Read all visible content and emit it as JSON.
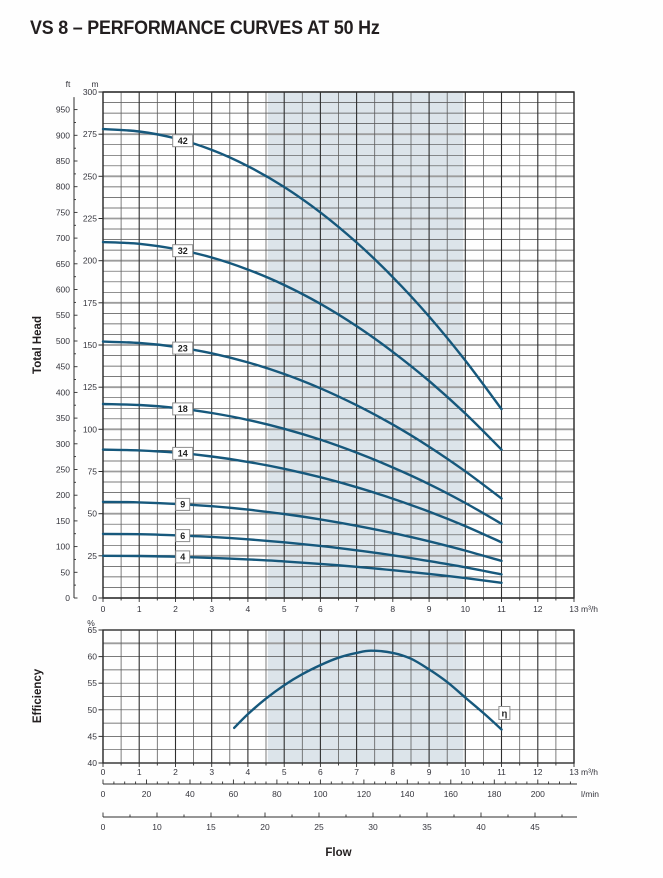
{
  "title": "VS 8 – PERFORMANCE CURVES AT 50 Hz",
  "colors": {
    "curve": "#16587c",
    "band": "#dce4ea",
    "grid_minor_h": "#4f4f4f",
    "grid_major_h": "#9c9c9c",
    "grid_major_v": "#2e2e2e",
    "grid_minor_v": "#5c5c5c",
    "border": "#2e2e2e",
    "axis_text": "#35353d",
    "label_box_border": "#8f8f8f",
    "label_box_fill": "#ffffff",
    "title_text": "#221e1f"
  },
  "chart_data": [
    {
      "type": "line",
      "name": "total-head-curves",
      "ylabel": "Total Head",
      "x_unit": "m³/h",
      "y_unit_left": "ft",
      "y_unit_right": "m",
      "xlim": [
        0,
        13
      ],
      "ylim": [
        0,
        300
      ],
      "x_ticks": [
        0,
        1,
        2,
        3,
        4,
        5,
        6,
        7,
        8,
        9,
        10,
        11,
        12,
        13
      ],
      "y_ticks_m": [
        0,
        25,
        50,
        75,
        100,
        125,
        150,
        175,
        200,
        225,
        250,
        275,
        300
      ],
      "y_ticks_ft": [
        0,
        50,
        100,
        150,
        200,
        250,
        300,
        350,
        400,
        450,
        500,
        550,
        600,
        650,
        700,
        750,
        800,
        850,
        900,
        950
      ],
      "band_x": [
        4.55,
        9.95
      ],
      "grid": {
        "x_minor_step": 0.5,
        "y_minor_step": 6.25,
        "y_major_step": 25
      },
      "legend_position": "on-curve-boxes",
      "series": [
        {
          "name": "42",
          "label_x": 2.2,
          "points": [
            [
              0,
              278
            ],
            [
              1,
              276.6
            ],
            [
              2,
              272.5
            ],
            [
              3,
              265.7
            ],
            [
              4,
              256.0
            ],
            [
              5,
              243.7
            ],
            [
              6,
              228.6
            ],
            [
              7,
              210.8
            ],
            [
              8,
              190.2
            ],
            [
              9,
              166.9
            ],
            [
              10,
              140.8
            ],
            [
              11,
              112
            ]
          ]
        },
        {
          "name": "32",
          "label_x": 2.2,
          "points": [
            [
              0,
              211
            ],
            [
              1,
              210.0
            ],
            [
              2,
              206.9
            ],
            [
              3,
              201.9
            ],
            [
              4,
              194.7
            ],
            [
              5,
              185.6
            ],
            [
              6,
              174.4
            ],
            [
              7,
              161.2
            ],
            [
              8,
              145.9
            ],
            [
              9,
              128.7
            ],
            [
              10,
              109.4
            ],
            [
              11,
              88
            ]
          ]
        },
        {
          "name": "23",
          "label_x": 2.2,
          "points": [
            [
              0,
              152
            ],
            [
              1,
              151.2
            ],
            [
              2,
              148.9
            ],
            [
              3,
              145.1
            ],
            [
              4,
              139.7
            ],
            [
              5,
              132.8
            ],
            [
              6,
              124.3
            ],
            [
              7,
              114.3
            ],
            [
              8,
              102.8
            ],
            [
              9,
              89.7
            ],
            [
              10,
              75.1
            ],
            [
              11,
              59
            ]
          ]
        },
        {
          "name": "18",
          "label_x": 2.2,
          "points": [
            [
              0,
              115
            ],
            [
              1,
              114.4
            ],
            [
              2,
              112.7
            ],
            [
              3,
              109.7
            ],
            [
              4,
              105.6
            ],
            [
              5,
              100.3
            ],
            [
              6,
              93.9
            ],
            [
              7,
              86.2
            ],
            [
              8,
              77.4
            ],
            [
              9,
              67.5
            ],
            [
              10,
              56.3
            ],
            [
              11,
              44
            ]
          ]
        },
        {
          "name": "14",
          "label_x": 2.2,
          "points": [
            [
              0,
              88
            ],
            [
              1,
              87.5
            ],
            [
              2,
              86.2
            ],
            [
              3,
              83.9
            ],
            [
              4,
              80.7
            ],
            [
              5,
              76.6
            ],
            [
              6,
              71.6
            ],
            [
              7,
              65.7
            ],
            [
              8,
              58.9
            ],
            [
              9,
              51.2
            ],
            [
              10,
              42.6
            ],
            [
              11,
              33
            ]
          ]
        },
        {
          "name": "9",
          "label_x": 2.2,
          "points": [
            [
              0,
              57
            ],
            [
              1,
              56.7
            ],
            [
              2,
              55.8
            ],
            [
              3,
              54.4
            ],
            [
              4,
              52.4
            ],
            [
              5,
              49.8
            ],
            [
              6,
              46.6
            ],
            [
              7,
              42.8
            ],
            [
              8,
              38.5
            ],
            [
              9,
              33.6
            ],
            [
              10,
              28.1
            ],
            [
              11,
              22
            ]
          ]
        },
        {
          "name": "6",
          "label_x": 2.2,
          "points": [
            [
              0,
              38
            ],
            [
              1,
              37.8
            ],
            [
              2,
              37.2
            ],
            [
              3,
              36.2
            ],
            [
              4,
              34.8
            ],
            [
              5,
              33.0
            ],
            [
              6,
              30.9
            ],
            [
              7,
              28.3
            ],
            [
              8,
              25.3
            ],
            [
              9,
              21.9
            ],
            [
              10,
              18.2
            ],
            [
              11,
              14
            ]
          ]
        },
        {
          "name": "4",
          "label_x": 2.2,
          "points": [
            [
              0,
              25
            ],
            [
              1,
              24.9
            ],
            [
              2,
              24.5
            ],
            [
              3,
              23.8
            ],
            [
              4,
              22.9
            ],
            [
              5,
              21.7
            ],
            [
              6,
              20.2
            ],
            [
              7,
              18.5
            ],
            [
              8,
              16.5
            ],
            [
              9,
              14.3
            ],
            [
              10,
              11.8
            ],
            [
              11,
              9
            ]
          ]
        }
      ]
    },
    {
      "type": "line",
      "name": "efficiency-curve",
      "ylabel": "Efficiency",
      "y_unit": "%",
      "x_unit": "m³/h",
      "xlim": [
        0,
        13
      ],
      "ylim": [
        40,
        65
      ],
      "x_ticks": [
        0,
        1,
        2,
        3,
        4,
        5,
        6,
        7,
        8,
        9,
        10,
        11,
        12,
        13
      ],
      "y_ticks": [
        40,
        45,
        50,
        55,
        60,
        65
      ],
      "band_x": [
        4.55,
        9.95
      ],
      "grid": {
        "x_minor_step": 0.5,
        "y_minor_step": 2.5,
        "y_major_lines": [
          62.5
        ]
      },
      "series": [
        {
          "name": "η",
          "label_pos": [
            11.08,
            49.4
          ],
          "points": [
            [
              3.62,
              46.6
            ],
            [
              4,
              49.2
            ],
            [
              4.5,
              52.1
            ],
            [
              5,
              54.6
            ],
            [
              5.5,
              56.7
            ],
            [
              6,
              58.4
            ],
            [
              6.5,
              59.8
            ],
            [
              7,
              60.7
            ],
            [
              7.4,
              61.1
            ],
            [
              8,
              60.7
            ],
            [
              8.5,
              59.6
            ],
            [
              9,
              57.6
            ],
            [
              9.5,
              55.2
            ],
            [
              10,
              52.3
            ],
            [
              10.5,
              49.4
            ],
            [
              11,
              46.3
            ]
          ]
        }
      ]
    }
  ],
  "bottom_scales": {
    "lmin": {
      "unit": "l/min",
      "labels": [
        0,
        20,
        40,
        60,
        80,
        100,
        120,
        140,
        160,
        180,
        200
      ],
      "label_step": 20,
      "minor_step": 5,
      "max_tick": 215
    },
    "gpm": {
      "labels": [
        0,
        10,
        15,
        20,
        25,
        30,
        35,
        40,
        45
      ]
    },
    "flow_title": "Flow"
  }
}
